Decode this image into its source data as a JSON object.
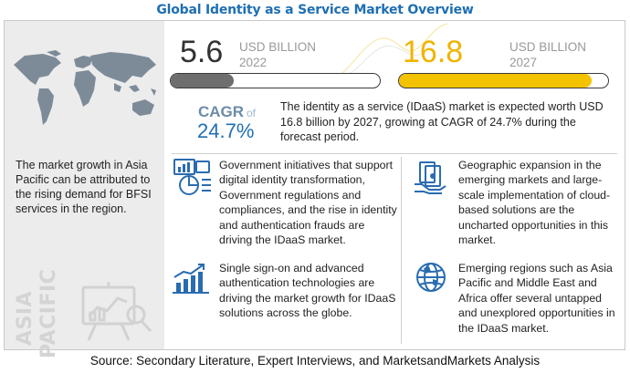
{
  "title": "Global Identity as a Service Market Overview",
  "left_panel": {
    "description": "The market growth in Asia Pacific can be attributed to the rising demand for BFSI services in the region.",
    "region_line1": "ASIA",
    "region_line2": "PACIFIC"
  },
  "stats": [
    {
      "value": "5.6",
      "unit": "USD BILLION",
      "year": "2022",
      "fill_fraction": 0.3,
      "fill_color": "#6e6e6e"
    },
    {
      "value": "16.8",
      "unit": "USD BILLION",
      "year": "2027",
      "fill_fraction": 0.92,
      "fill_color": "#f3c300",
      "value_color": "#f0b400"
    }
  ],
  "cagr": {
    "label": "CAGR",
    "of": "of",
    "value": "24.7%",
    "summary": "The identity as a service (IDaaS) market is expected worth USD 16.8 billion by 2027, growing at CAGR of 24.7% during the forecast period."
  },
  "insights": [
    {
      "icon": "government-chart-icon",
      "text": "Government initiatives that support digital identity transformation, Government regulations and compliances, and the rise in identity and authentication frauds are driving the IDaaS market."
    },
    {
      "icon": "cash-hand-icon",
      "text": "Geographic expansion in the emerging markets and large-scale implementation of cloud-based solutions are the uncharted opportunities in this market."
    },
    {
      "icon": "growth-chart-icon",
      "text": "Single sign-on and advanced authentication technologies are driving the market growth for IDaaS solutions across the globe."
    },
    {
      "icon": "globe-icon",
      "text": "Emerging regions such as Asia Pacific and Middle East and Africa offer several untapped and unexplored opportunities in the IDaaS market."
    }
  ],
  "source": "Source: Secondary Literature, Expert Interviews, and MarketsandMarkets Analysis",
  "colors": {
    "title": "#1f6fb2",
    "cagr": "#1f6fb2",
    "icon_blue": "#2a6cb0",
    "accent_yellow": "#f3c300"
  }
}
